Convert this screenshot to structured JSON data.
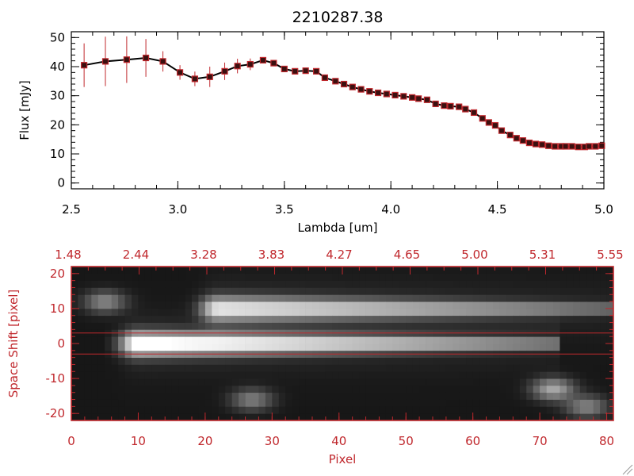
{
  "chart_data": [
    {
      "type": "line",
      "title": "2210287.38",
      "xlabel": "Lambda [um]",
      "ylabel": "Flux [mJy]",
      "xlim": [
        2.5,
        5.0
      ],
      "ylim": [
        -2,
        52
      ],
      "x_ticks": [
        "2.5",
        "3.0",
        "3.5",
        "4.0",
        "4.5",
        "5.0"
      ],
      "y_ticks": [
        "0",
        "10",
        "20",
        "30",
        "40",
        "50"
      ],
      "colors": {
        "line": "#000000",
        "marker": "#c0282d",
        "errorbar": "#c0282d",
        "marker_fill": "#3a1010"
      },
      "series": [
        {
          "x": [
            2.56,
            2.66,
            2.76,
            2.85,
            2.93,
            3.01,
            3.08,
            3.15,
            3.22,
            3.28,
            3.34,
            3.4,
            3.45,
            3.5,
            3.55,
            3.6,
            3.65,
            3.69,
            3.74,
            3.78,
            3.82,
            3.86,
            3.9,
            3.94,
            3.98,
            4.02,
            4.06,
            4.1,
            4.13,
            4.17,
            4.21,
            4.25,
            4.28,
            4.32,
            4.35,
            4.39,
            4.43,
            4.46,
            4.49,
            4.52,
            4.56,
            4.59,
            4.62,
            4.65,
            4.68,
            4.71,
            4.74,
            4.77,
            4.8,
            4.82,
            4.85,
            4.88,
            4.91,
            4.93,
            4.96,
            4.99
          ],
          "y": [
            40.5,
            41.8,
            42.4,
            43.0,
            41.8,
            38.0,
            35.8,
            36.5,
            38.4,
            40.2,
            40.8,
            42.2,
            41.2,
            39.2,
            38.4,
            38.6,
            38.4,
            36.2,
            35.0,
            34.0,
            33.0,
            32.2,
            31.5,
            31.0,
            30.6,
            30.2,
            29.8,
            29.4,
            29.0,
            28.6,
            27.2,
            26.6,
            26.4,
            26.2,
            25.4,
            24.2,
            22.2,
            20.8,
            19.8,
            18.0,
            16.5,
            15.4,
            14.6,
            13.8,
            13.4,
            13.2,
            12.8,
            12.6,
            12.6,
            12.6,
            12.6,
            12.4,
            12.4,
            12.6,
            12.6,
            12.8
          ],
          "errors": [
            7.5,
            8.5,
            8.0,
            6.5,
            3.5,
            2.5,
            2.5,
            3.5,
            3.0,
            2.5,
            2.0,
            1.0,
            0.8,
            0.8,
            0.7,
            0.7,
            0.7,
            0.6,
            0.6,
            0.6,
            0.6,
            0.5,
            0.5,
            0.5,
            0.5,
            0.5,
            0.5,
            0.5,
            0.5,
            0.5,
            0.6,
            0.6,
            0.6,
            0.6,
            0.6,
            0.6,
            0.6,
            0.6,
            0.6,
            0.6,
            0.6,
            0.6,
            0.6,
            0.6,
            0.6,
            0.6,
            0.6,
            0.6,
            0.6,
            0.6,
            0.6,
            0.6,
            0.6,
            0.6,
            0.8,
            1.0
          ]
        }
      ]
    },
    {
      "type": "heatmap",
      "xlabel": "Pixel",
      "ylabel": "Space Shift [pixel]",
      "xlim": [
        0,
        81
      ],
      "ylim": [
        -22,
        22
      ],
      "x_ticks": [
        "0",
        "10",
        "20",
        "30",
        "40",
        "50",
        "60",
        "70",
        "80"
      ],
      "y_ticks": [
        "-20",
        "-10",
        "0",
        "10",
        "20"
      ],
      "top_axis_ticks": [
        "1.48",
        "2.44",
        "3.28",
        "3.83",
        "4.27",
        "4.65",
        "5.00",
        "5.31",
        "5.55"
      ],
      "extraction_aperture": [
        -3,
        3
      ],
      "colors": {
        "axis": "#c0282d",
        "aperture_line": "#c0282d",
        "colormap": "grayscale"
      },
      "features": [
        {
          "kind": "streak",
          "x_start": 8,
          "x_end": 70,
          "y_center": 0,
          "peak_x": 10,
          "peak": 1.0
        },
        {
          "kind": "streak",
          "x_start": 18,
          "x_end": 80,
          "y_center": 10,
          "peak_x": 22,
          "peak": 0.78
        },
        {
          "kind": "blob",
          "x": 5,
          "y": 12,
          "peak": 0.42
        },
        {
          "kind": "blob",
          "x": 27,
          "y": -16,
          "peak": 0.38
        },
        {
          "kind": "blob",
          "x": 72,
          "y": -13,
          "peak": 0.55
        },
        {
          "kind": "blob",
          "x": 77,
          "y": -18,
          "peak": 0.4
        }
      ]
    }
  ]
}
